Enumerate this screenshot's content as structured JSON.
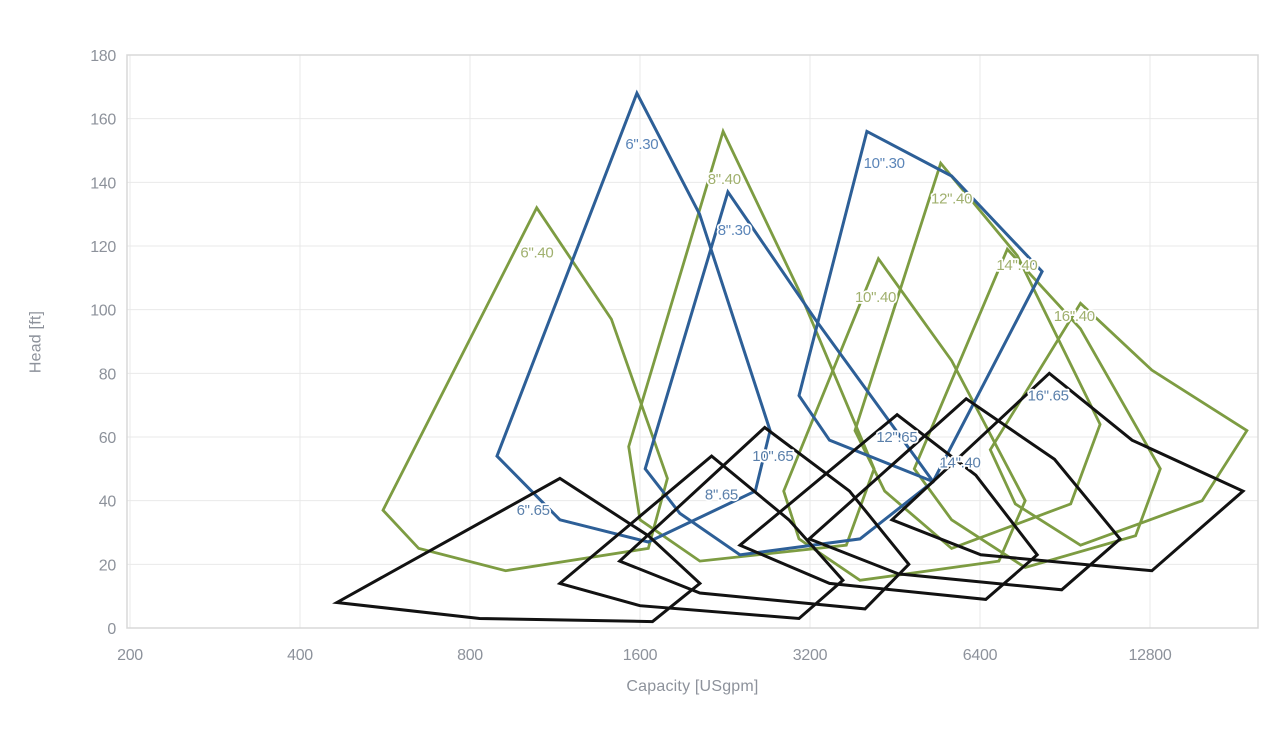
{
  "chart_data": {
    "type": "line",
    "subtype": "pump-selection-envelopes",
    "title": "",
    "xlabel": "Capacity [USgpm]",
    "ylabel": "Head [ft]",
    "x_scale": "log2",
    "xlim": [
      200,
      19900
    ],
    "ylim": [
      0,
      180
    ],
    "grid": true,
    "legend": "none",
    "x_ticks": [
      200,
      400,
      800,
      1600,
      3200,
      6400,
      12800
    ],
    "y_ticks": [
      0,
      20,
      40,
      60,
      80,
      100,
      120,
      140,
      160,
      180
    ],
    "styles": {
      "background": "#ffffff",
      "gridline_color": "#e9e9e9",
      "border_color": "#d8d8d8",
      "tick_label_color": "#8d929b",
      "axis_title_color": "#8d929b",
      "line_colors": {
        "blue": "#2d5f97",
        "green": "#7d9c42",
        "black": "#121212"
      },
      "label_colors": {
        "blue": "#5b85b8",
        "green": "#a0b06e",
        "steel": "#5b80ab"
      }
    },
    "series": [
      {
        "name": "6\".40",
        "color": "green",
        "label_color": "green",
        "label": {
          "q": 1051,
          "h": 118
        },
        "points": [
          [
            561,
            37
          ],
          [
            1050,
            132
          ],
          [
            1424,
            97
          ],
          [
            1789,
            47
          ],
          [
            1655,
            25
          ],
          [
            925,
            18
          ],
          [
            649,
            25
          ]
        ]
      },
      {
        "name": "8\".40",
        "color": "green",
        "label_color": "green",
        "label": {
          "q": 2256,
          "h": 141
        },
        "points": [
          [
            1528,
            57
          ],
          [
            2245,
            156
          ],
          [
            3060,
            106
          ],
          [
            4155,
            50
          ],
          [
            3710,
            26
          ],
          [
            2043,
            21
          ],
          [
            1600,
            34
          ]
        ]
      },
      {
        "name": "10\".40",
        "color": "green",
        "label_color": "green",
        "label": {
          "q": 4180,
          "h": 104
        },
        "points": [
          [
            2875,
            43
          ],
          [
            4230,
            116
          ],
          [
            5700,
            84
          ],
          [
            7696,
            40
          ],
          [
            6913,
            21
          ],
          [
            3923,
            15
          ],
          [
            3060,
            28
          ]
        ]
      },
      {
        "name": "12\".40",
        "color": "green",
        "label_color": "green",
        "label": {
          "q": 5700,
          "h": 135
        },
        "points": [
          [
            3844,
            62
          ],
          [
            5452,
            146
          ],
          [
            7450,
            117
          ],
          [
            10445,
            64
          ],
          [
            9263,
            39
          ],
          [
            5700,
            25
          ],
          [
            4340,
            43
          ]
        ]
      },
      {
        "name": "14\".40",
        "color": "green",
        "label_color": "green",
        "label": {
          "q": 7440,
          "h": 114
        },
        "points": [
          [
            4895,
            50
          ],
          [
            7155,
            119
          ],
          [
            9640,
            94
          ],
          [
            13350,
            50
          ],
          [
            12070,
            29
          ],
          [
            7696,
            19
          ],
          [
            5700,
            34
          ]
        ]
      },
      {
        "name": "16\".40",
        "color": "green",
        "label_color": "green",
        "label": {
          "q": 9400,
          "h": 98
        },
        "points": [
          [
            6675,
            56
          ],
          [
            9640,
            102
          ],
          [
            12900,
            81
          ],
          [
            19000,
            62
          ],
          [
            15830,
            40
          ],
          [
            9640,
            26
          ],
          [
            7390,
            39
          ]
        ]
      },
      {
        "name": "6\".30",
        "color": "blue",
        "label_color": "blue",
        "label": {
          "q": 1612,
          "h": 152
        },
        "points": [
          [
            893,
            54
          ],
          [
            1580,
            168
          ],
          [
            2040,
            130
          ],
          [
            2720,
            62
          ],
          [
            2560,
            43
          ],
          [
            1655,
            27
          ],
          [
            1154,
            34
          ]
        ]
      },
      {
        "name": "8\".30",
        "color": "blue",
        "label_color": "blue",
        "label": {
          "q": 2350,
          "h": 125
        },
        "points": [
          [
            1634,
            50
          ],
          [
            2290,
            137
          ],
          [
            3268,
            97
          ],
          [
            5286,
            46
          ],
          [
            3923,
            28
          ],
          [
            2405,
            23
          ],
          [
            1883,
            36
          ]
        ]
      },
      {
        "name": "10\".30",
        "color": "blue",
        "label_color": "blue",
        "label": {
          "q": 4330,
          "h": 146
        },
        "points": [
          [
            3060,
            73
          ],
          [
            4036,
            156
          ],
          [
            5700,
            142
          ],
          [
            8244,
            112
          ],
          [
            5286,
            46
          ],
          [
            3465,
            59
          ]
        ]
      },
      {
        "name": "6\".65",
        "color": "black",
        "label_color": "steel",
        "label": {
          "q": 1035,
          "h": 37
        },
        "points": [
          [
            465,
            8
          ],
          [
            1154,
            47
          ],
          [
            1655,
            29
          ],
          [
            2043,
            14
          ],
          [
            1684,
            2
          ],
          [
            832,
            3
          ]
        ]
      },
      {
        "name": "8\".65",
        "color": "black",
        "label_color": "steel",
        "label": {
          "q": 2230,
          "h": 42
        },
        "points": [
          [
            1154,
            14
          ],
          [
            2142,
            54
          ],
          [
            2936,
            34
          ],
          [
            3660,
            15
          ],
          [
            3060,
            3
          ],
          [
            1600,
            7
          ]
        ]
      },
      {
        "name": "10\".65",
        "color": "black",
        "label_color": "steel",
        "label": {
          "q": 2750,
          "h": 54
        },
        "points": [
          [
            1473,
            21
          ],
          [
            2660,
            63
          ],
          [
            3759,
            43
          ],
          [
            4787,
            20
          ],
          [
            4005,
            6
          ],
          [
            2043,
            11
          ]
        ]
      },
      {
        "name": "12\".65",
        "color": "black",
        "label_color": "steel",
        "label": {
          "q": 4560,
          "h": 60
        },
        "points": [
          [
            2405,
            26
          ],
          [
            4565,
            67
          ],
          [
            6291,
            48
          ],
          [
            8080,
            23
          ],
          [
            6553,
            9
          ],
          [
            3465,
            14
          ]
        ]
      },
      {
        "name": "14\".40",
        "color": "black",
        "label_color": "steel",
        "label": {
          "q": 5900,
          "h": 52
        },
        "points": [
          [
            3190,
            28
          ],
          [
            6050,
            72
          ],
          [
            8670,
            53
          ],
          [
            11330,
            28
          ],
          [
            8930,
            12
          ],
          [
            4590,
            17
          ]
        ]
      },
      {
        "name": "16\".65",
        "color": "black",
        "label_color": "steel",
        "label": {
          "q": 8450,
          "h": 73
        },
        "points": [
          [
            4470,
            34
          ],
          [
            8490,
            80
          ],
          [
            11900,
            59
          ],
          [
            18700,
            43
          ],
          [
            12900,
            18
          ],
          [
            6420,
            23
          ]
        ]
      }
    ]
  }
}
